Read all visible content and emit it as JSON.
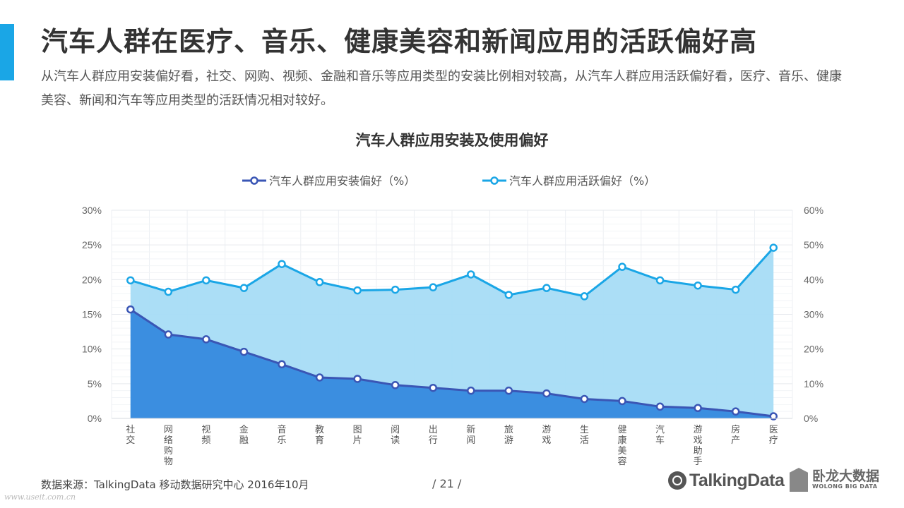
{
  "header": {
    "title": "汽车人群在医疗、音乐、健康美容和新闻应用的活跃偏好高",
    "description": "从汽车人群应用安装偏好看，社交、网购、视频、金融和音乐等应用类型的安装比例相对较高，从汽车人群应用活跃偏好看，医疗、音乐、健康美容、新闻和汽车等应用类型的活跃情况相对较好。",
    "accent_color": "#1aa6e6"
  },
  "chart_data": {
    "type": "area",
    "title": "汽车人群应用安装及使用偏好",
    "categories": [
      "社交",
      "网络购物",
      "视频",
      "金融",
      "音乐",
      "教育",
      "图片",
      "阅读",
      "出行",
      "新闻",
      "旅游",
      "游戏",
      "生活",
      "健康美容",
      "汽车",
      "游戏助手",
      "房产",
      "医疗"
    ],
    "series": [
      {
        "name": "汽车人群应用安装偏好（%）",
        "axis": "left",
        "color": "#3a56b5",
        "fill": "#3b8ee0",
        "values": [
          15.7,
          12.1,
          11.4,
          9.6,
          7.8,
          5.9,
          5.7,
          4.8,
          4.4,
          4.0,
          4.0,
          3.6,
          2.8,
          2.5,
          1.7,
          1.5,
          1.0,
          0.3
        ]
      },
      {
        "name": "汽车人群应用活跃偏好（%）",
        "axis": "right",
        "color": "#1aa6e6",
        "fill": "#a6dcf5",
        "values": [
          39.8,
          36.5,
          39.8,
          37.6,
          44.5,
          39.3,
          36.9,
          37.1,
          37.8,
          41.5,
          35.6,
          37.6,
          35.2,
          43.7,
          39.8,
          38.3,
          37.1,
          49.2
        ]
      }
    ],
    "y_left": {
      "ticks": [
        "0%",
        "5%",
        "10%",
        "15%",
        "20%",
        "25%",
        "30%"
      ],
      "min": 0,
      "max": 30
    },
    "y_right": {
      "ticks": [
        "0%",
        "10%",
        "20%",
        "30%",
        "40%",
        "50%",
        "60%"
      ],
      "min": 0,
      "max": 60
    },
    "legend_position": "top-center",
    "grid": true
  },
  "footer": {
    "source": "数据来源：TalkingData 移动数据研究中心  2016年10月",
    "page": "/ 21 /",
    "watermark": "www.useit.com.cn",
    "brand_talkingdata": "TalkingData",
    "brand_wolong_cn": "卧龙大数据",
    "brand_wolong_en": "WOLONG BIG DATA"
  }
}
